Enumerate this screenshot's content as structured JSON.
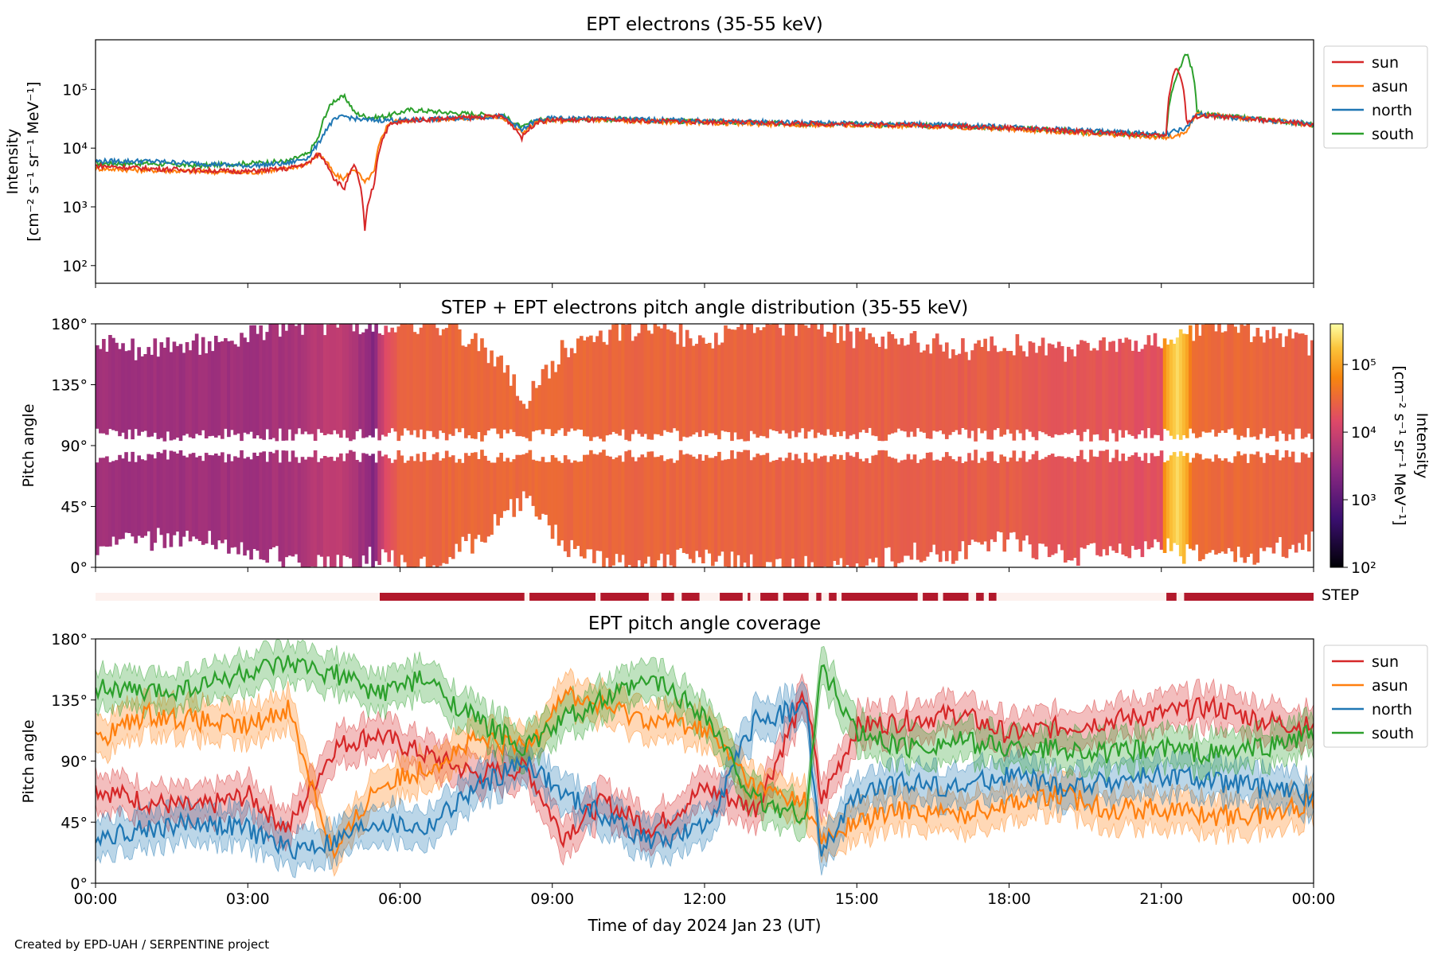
{
  "footer": "Created by EPD-UAH / SERPENTINE project",
  "xaxis": {
    "label": "Time of day 2024 Jan 23 (UT)",
    "ticks": [
      "00:00",
      "03:00",
      "06:00",
      "09:00",
      "12:00",
      "15:00",
      "18:00",
      "21:00",
      "00:00"
    ],
    "range_hours": [
      0,
      24
    ]
  },
  "colors": {
    "sun": "#d62728",
    "asun": "#ff7f0e",
    "north": "#1f77b4",
    "south": "#2ca02c",
    "step_bar": "#b2182b",
    "step_bg": "#fdf1ee"
  },
  "chart_data": [
    {
      "type": "line",
      "title": "EPT electrons (35-55 keV)",
      "ylabel": "Intensity",
      "ylabel_units": "[cm⁻² s⁻¹ sr⁻¹ MeV⁻¹]",
      "yscale": "log",
      "ylim": [
        50,
        700000
      ],
      "yticks": [
        "10²",
        "10³",
        "10⁴",
        "10⁵"
      ],
      "ytick_values": [
        100,
        1000,
        10000,
        100000
      ],
      "legend": "outside-right",
      "x": [
        0,
        1,
        2,
        3,
        3.8,
        4.2,
        4.4,
        4.7,
        4.9,
        5.1,
        5.3,
        5.5,
        5.8,
        6.2,
        7,
        8,
        8.4,
        8.7,
        9,
        10,
        12,
        14,
        16,
        18,
        20,
        21.1,
        21.3,
        21.5,
        21.7,
        22,
        23,
        24
      ],
      "series": [
        {
          "name": "sun",
          "values": [
            5000,
            4500,
            4200,
            4000,
            4500,
            5500,
            8000,
            3000,
            2000,
            5000,
            300,
            2500,
            25000,
            30000,
            32000,
            35000,
            15000,
            28000,
            30000,
            30000,
            28000,
            26000,
            25000,
            22000,
            18000,
            16000,
            250000,
            25000,
            35000,
            35000,
            30000,
            25000
          ]
        },
        {
          "name": "asun",
          "values": [
            4500,
            4200,
            4000,
            3800,
            4500,
            5500,
            8000,
            3500,
            3000,
            4500,
            2500,
            4000,
            28000,
            30000,
            32000,
            34000,
            18000,
            28000,
            30000,
            30000,
            27000,
            25000,
            24000,
            21000,
            17000,
            15000,
            16000,
            18000,
            38000,
            36000,
            30000,
            25000
          ]
        },
        {
          "name": "north",
          "values": [
            6000,
            6000,
            5500,
            5000,
            5500,
            7000,
            12000,
            30000,
            35000,
            32000,
            30000,
            30000,
            30000,
            30000,
            32000,
            35000,
            20000,
            30000,
            32000,
            32000,
            29000,
            27000,
            26000,
            23000,
            19000,
            17000,
            20000,
            22000,
            38000,
            35000,
            30000,
            26000
          ]
        },
        {
          "name": "south",
          "values": [
            5500,
            5500,
            5000,
            5500,
            6000,
            8000,
            15000,
            65000,
            75000,
            40000,
            35000,
            33000,
            36000,
            45000,
            40000,
            36000,
            22000,
            30000,
            31000,
            31000,
            28000,
            26000,
            25000,
            22000,
            18000,
            16000,
            150000,
            400000,
            40000,
            36000,
            31000,
            25000
          ]
        }
      ]
    },
    {
      "type": "heatmap",
      "title": "STEP + EPT electrons pitch angle distribution (35-55 keV)",
      "ylabel": "Pitch angle",
      "yticks": [
        "0°",
        "45°",
        "90°",
        "135°",
        "180°"
      ],
      "ytick_values": [
        0,
        45,
        90,
        135,
        180
      ],
      "colorbar_label": "Intensity",
      "colorbar_units": "[cm⁻² s⁻¹ sr⁻¹ MeV⁻¹]",
      "colorbar_ticks": [
        "10²",
        "10³",
        "10⁴",
        "10⁵"
      ],
      "colorbar_range": [
        100,
        400000
      ],
      "coverage_x": [
        0,
        1,
        2,
        3,
        3.8,
        4.7,
        5.5,
        6.5,
        7.5,
        8.5,
        9.2,
        10,
        11,
        12,
        13,
        14,
        15,
        16,
        17,
        18,
        19,
        20,
        21,
        22,
        23,
        24
      ],
      "coverage_low": [
        15,
        20,
        25,
        15,
        5,
        0,
        8,
        0,
        20,
        55,
        15,
        5,
        0,
        10,
        0,
        0,
        0,
        10,
        10,
        20,
        10,
        10,
        15,
        5,
        10,
        20
      ],
      "coverage_high": [
        165,
        160,
        165,
        170,
        180,
        180,
        175,
        180,
        170,
        125,
        160,
        170,
        180,
        165,
        180,
        180,
        170,
        170,
        160,
        165,
        160,
        165,
        170,
        180,
        170,
        165
      ],
      "intensity_x": [
        0,
        3,
        4,
        4.7,
        5.5,
        6,
        8,
        10,
        14,
        18,
        21,
        21.3,
        21.6,
        24
      ],
      "intensity_values": [
        4000,
        4000,
        5000,
        8000,
        2000,
        28000,
        32000,
        30000,
        27000,
        23000,
        17000,
        250000,
        35000,
        25000
      ]
    },
    {
      "type": "bar",
      "title": "STEP",
      "intervals_hours": [
        [
          5.6,
          8.45
        ],
        [
          8.55,
          9.85
        ],
        [
          9.95,
          10.9
        ],
        [
          11.15,
          11.4
        ],
        [
          11.55,
          11.9
        ],
        [
          12.3,
          12.75
        ],
        [
          12.85,
          12.9
        ],
        [
          13.1,
          13.45
        ],
        [
          13.55,
          14.05
        ],
        [
          14.2,
          14.3
        ],
        [
          14.45,
          14.6
        ],
        [
          14.7,
          16.2
        ],
        [
          16.3,
          16.6
        ],
        [
          16.7,
          17.2
        ],
        [
          17.35,
          17.5
        ],
        [
          17.6,
          17.75
        ],
        [
          21.1,
          21.3
        ],
        [
          21.45,
          24
        ]
      ]
    },
    {
      "type": "line",
      "title": "EPT pitch angle coverage",
      "ylabel": "Pitch angle",
      "yticks": [
        "0°",
        "45°",
        "90°",
        "135°",
        "180°"
      ],
      "ytick_values": [
        0,
        45,
        90,
        135,
        180
      ],
      "ylim": [
        0,
        180
      ],
      "legend": "outside-right",
      "band_halfwidth_deg": 14,
      "x": [
        0,
        1,
        2,
        3,
        3.8,
        4.7,
        5.5,
        6.5,
        7.5,
        8.5,
        9.2,
        10,
        11,
        12,
        13,
        14,
        14.3,
        15,
        16,
        17,
        18,
        19,
        20,
        21,
        22,
        23,
        24
      ],
      "series": [
        {
          "name": "sun",
          "values": [
            70,
            60,
            55,
            65,
            40,
            100,
            110,
            95,
            80,
            85,
            35,
            60,
            40,
            70,
            55,
            140,
            60,
            115,
            120,
            125,
            110,
            115,
            120,
            125,
            130,
            120,
            115
          ]
        },
        {
          "name": "asun",
          "values": [
            105,
            125,
            120,
            115,
            130,
            20,
            70,
            85,
            105,
            100,
            140,
            130,
            120,
            115,
            70,
            60,
            30,
            45,
            55,
            50,
            60,
            65,
            55,
            55,
            50,
            50,
            60
          ]
        },
        {
          "name": "north",
          "values": [
            35,
            40,
            45,
            40,
            25,
            30,
            45,
            40,
            70,
            90,
            65,
            50,
            30,
            40,
            120,
            130,
            20,
            65,
            75,
            70,
            80,
            70,
            75,
            80,
            75,
            70,
            65
          ]
        },
        {
          "name": "south",
          "values": [
            145,
            140,
            145,
            155,
            160,
            155,
            140,
            150,
            120,
            100,
            120,
            135,
            150,
            125,
            60,
            50,
            160,
            110,
            100,
            105,
            100,
            100,
            95,
            100,
            95,
            100,
            110
          ]
        }
      ]
    }
  ]
}
